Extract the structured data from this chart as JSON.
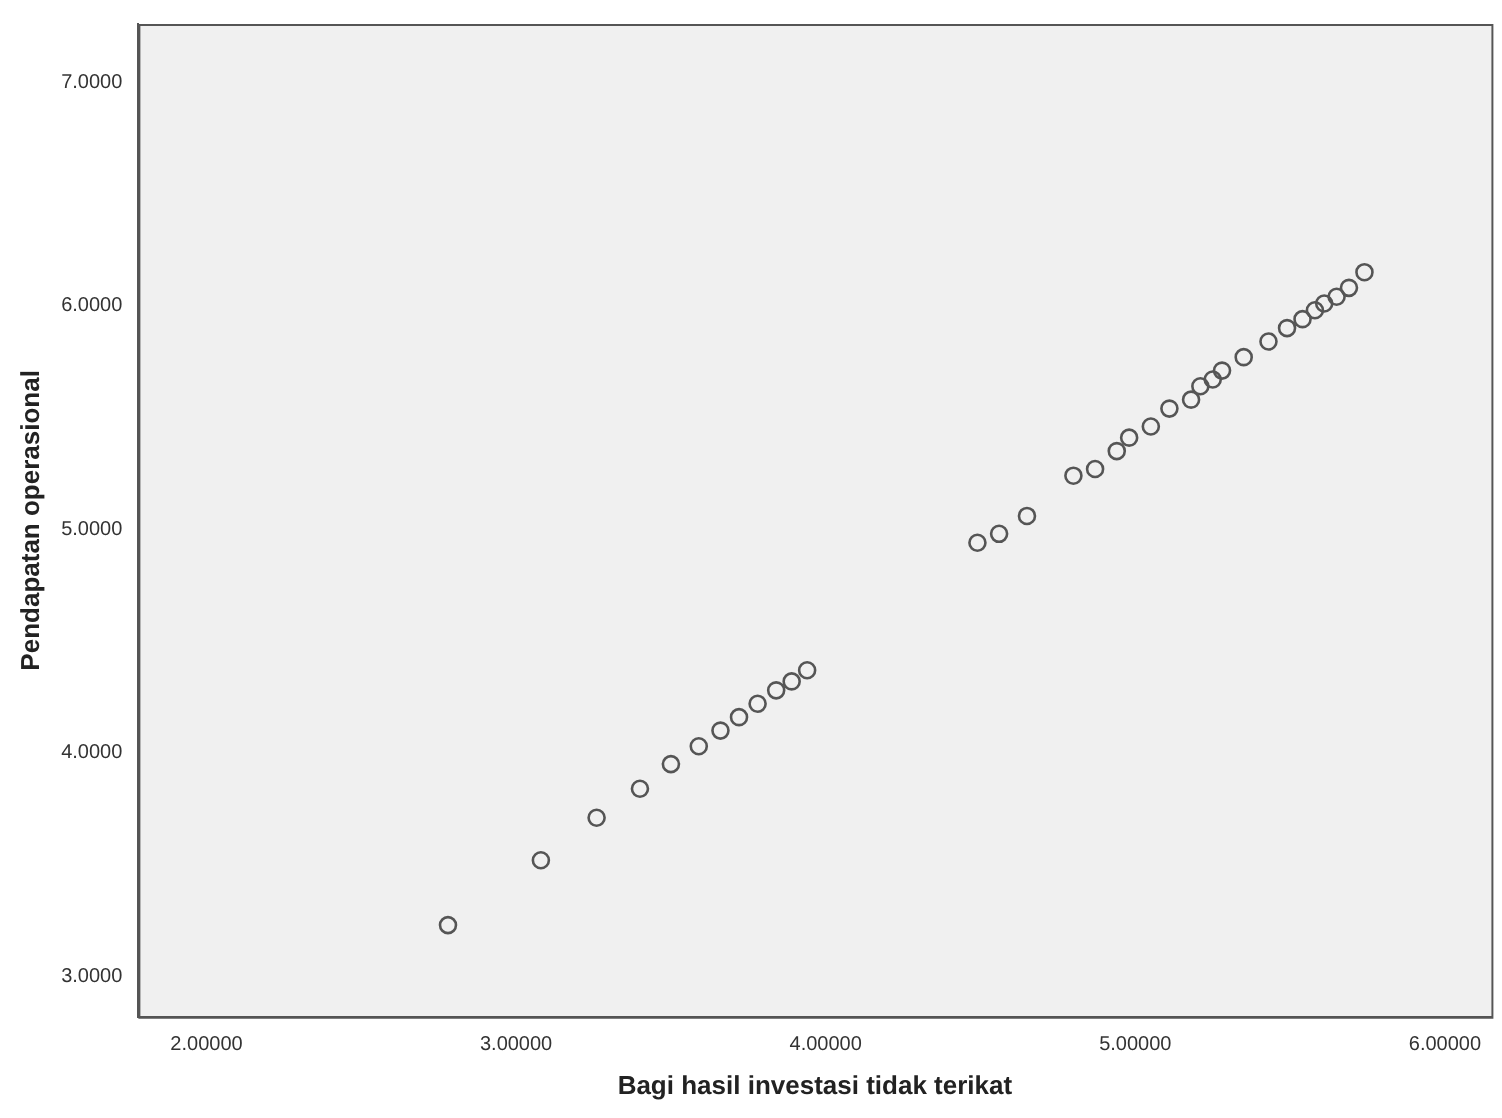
{
  "chart_data": {
    "type": "scatter",
    "xlabel": "Bagi hasil investasi tidak terikat",
    "ylabel": "Pendapatan operasional",
    "x": [
      2.78,
      3.08,
      3.26,
      3.4,
      3.5,
      3.59,
      3.66,
      3.72,
      3.78,
      3.84,
      3.89,
      3.94,
      4.49,
      4.56,
      4.65,
      4.8,
      4.87,
      4.94,
      4.98,
      5.05,
      5.11,
      5.18,
      5.21,
      5.25,
      5.28,
      5.35,
      5.43,
      5.49,
      5.54,
      5.58,
      5.61,
      5.65,
      5.69,
      5.74
    ],
    "values": [
      3.23,
      3.52,
      3.71,
      3.84,
      3.95,
      4.03,
      4.1,
      4.16,
      4.22,
      4.28,
      4.32,
      4.37,
      4.94,
      4.98,
      5.06,
      5.24,
      5.27,
      5.35,
      5.41,
      5.46,
      5.54,
      5.58,
      5.64,
      5.67,
      5.71,
      5.77,
      5.84,
      5.9,
      5.94,
      5.98,
      6.01,
      6.04,
      6.08,
      6.15
    ],
    "color": "#555555",
    "marker": "circle",
    "grid": false,
    "xlim": [
      1.78,
      6.15
    ],
    "xticks": [
      {
        "value": 2,
        "label": "2.00000"
      },
      {
        "value": 3,
        "label": "3.00000"
      },
      {
        "value": 4,
        "label": "4.00000"
      },
      {
        "value": 5,
        "label": "5.00000"
      },
      {
        "value": 6,
        "label": "6.00000"
      }
    ],
    "ylim": [
      2.82,
      7.26
    ],
    "yticks": [
      {
        "value": 3,
        "label": "3.0000"
      },
      {
        "value": 4,
        "label": "4.0000"
      },
      {
        "value": 5,
        "label": "5.0000"
      },
      {
        "value": 6,
        "label": "6.0000"
      },
      {
        "value": 7,
        "label": "7.0000"
      }
    ]
  }
}
